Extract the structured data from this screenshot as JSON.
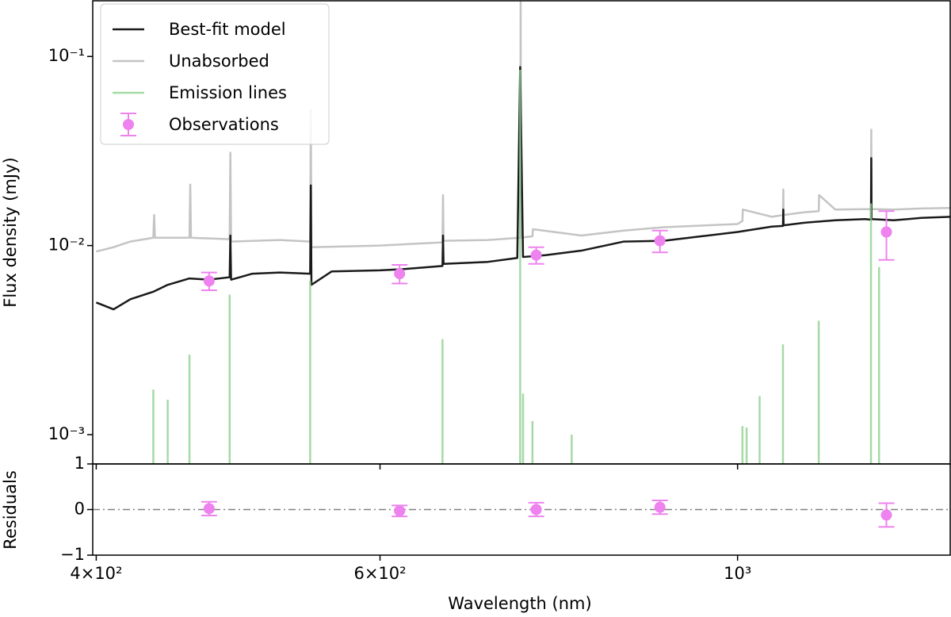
{
  "chart_data": [
    {
      "type": "line",
      "ylabel": "Flux density (mJy)",
      "xscale": "log",
      "yscale": "log",
      "xlim": [
        398,
        1355
      ],
      "ylim": [
        0.0007,
        0.197
      ],
      "yticks": [
        {
          "value": 0.001,
          "label": "10⁻³"
        },
        {
          "value": 0.01,
          "label": "10⁻²"
        },
        {
          "value": 0.1,
          "label": "10⁻¹"
        }
      ],
      "legend": "upper left",
      "series": [
        {
          "name": "Best-fit model",
          "color": "#1a1a1a",
          "style": "line",
          "x": [
            400,
            410,
            420,
            434,
            443,
            457,
            470,
            484,
            484.5,
            485,
            500,
            520,
            543,
            543.5,
            544,
            560,
            600,
            620,
            656,
            656.5,
            657,
            700,
            730,
            733,
            736,
            760,
            800,
            850,
            900,
            950,
            1000,
            1050,
            1067,
            1067.5,
            1068,
            1100,
            1150,
            1200,
            1210,
            1210.5,
            1211,
            1250,
            1300,
            1355
          ],
          "values": [
            0.005,
            0.0046,
            0.0052,
            0.0057,
            0.0062,
            0.0067,
            0.0066,
            0.0068,
            0.0113,
            0.0066,
            0.0071,
            0.0072,
            0.0071,
            0.0208,
            0.0062,
            0.0073,
            0.0074,
            0.0075,
            0.0078,
            0.0113,
            0.008,
            0.0082,
            0.0086,
            0.088,
            0.0087,
            0.0089,
            0.0094,
            0.0105,
            0.0106,
            0.0112,
            0.0118,
            0.0126,
            0.0127,
            0.0155,
            0.0128,
            0.0132,
            0.0136,
            0.0138,
            0.0137,
            0.029,
            0.0138,
            0.0136,
            0.014,
            0.0142
          ]
        },
        {
          "name": "Unabsorbed",
          "color": "#c4c4c4",
          "style": "line",
          "x": [
            400,
            410,
            420,
            434,
            434.5,
            435,
            457,
            457.5,
            458,
            484,
            484.5,
            485,
            520,
            543,
            543.5,
            544,
            600,
            656,
            656.5,
            657,
            700,
            733,
            733.5,
            734,
            746,
            746.5,
            800,
            850,
            900,
            1000,
            1007,
            1007.5,
            1050,
            1067,
            1067.5,
            1068,
            1100,
            1123,
            1123.5,
            1150,
            1210,
            1210.5,
            1211,
            1250,
            1300,
            1355
          ],
          "values": [
            0.0093,
            0.0098,
            0.0105,
            0.011,
            0.0145,
            0.011,
            0.011,
            0.021,
            0.011,
            0.0108,
            0.031,
            0.0105,
            0.0107,
            0.0105,
            0.052,
            0.0098,
            0.01,
            0.0104,
            0.0185,
            0.0106,
            0.0107,
            0.011,
            0.2,
            0.011,
            0.0112,
            0.0122,
            0.0113,
            0.012,
            0.0125,
            0.013,
            0.0135,
            0.0155,
            0.0142,
            0.0145,
            0.0198,
            0.0145,
            0.015,
            0.0152,
            0.0185,
            0.0155,
            0.0156,
            0.041,
            0.0156,
            0.0155,
            0.0157,
            0.0158
          ]
        },
        {
          "name": "Emission lines",
          "color": "#8fd18f",
          "style": "vlines",
          "x": [
            434,
            443,
            457,
            484,
            543,
            656,
            733,
            736,
            746,
            789,
            1007,
            1013,
            1032,
            1067,
            1123,
            1210,
            1224
          ],
          "values": [
            0.00173,
            0.00153,
            0.00265,
            0.0055,
            0.0065,
            0.0032,
            0.085,
            0.00165,
            0.00118,
            0.001,
            0.00111,
            0.00109,
            0.0016,
            0.003,
            0.004,
            0.0167,
            0.0077
          ]
        },
        {
          "name": "Observations",
          "color": "#ee82ee",
          "style": "errorbar",
          "x": [
            470,
            617,
            750,
            895,
            1237
          ],
          "values": [
            0.0065,
            0.0071,
            0.0089,
            0.0106,
            0.0118
          ],
          "errors": [
            0.0007,
            0.0008,
            0.0009,
            0.0014,
            0.0034
          ]
        }
      ]
    },
    {
      "type": "scatter",
      "xlabel": "Wavelength (nm)",
      "ylabel": "Residuals",
      "xscale": "log",
      "xlim": [
        398,
        1355
      ],
      "ylim": [
        -1,
        1
      ],
      "xticks": [
        {
          "value": 400,
          "label": "4×10²"
        },
        {
          "value": 600,
          "label": "6×10²"
        },
        {
          "value": 1000,
          "label": "10³"
        }
      ],
      "yticks": [
        {
          "value": -1,
          "label": "−1"
        },
        0,
        1
      ],
      "reference_line": 0,
      "color": "#ee82ee",
      "x": [
        470,
        617,
        750,
        895,
        1237
      ],
      "values": [
        0.02,
        -0.03,
        0.0,
        0.05,
        -0.12
      ],
      "errors": [
        0.15,
        0.12,
        0.15,
        0.15,
        0.26
      ]
    }
  ]
}
